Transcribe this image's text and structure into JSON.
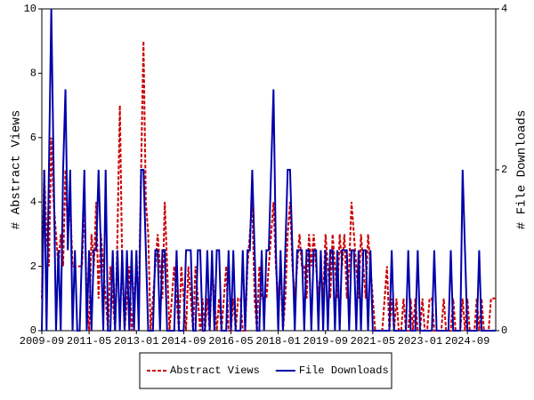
{
  "chart_data": {
    "type": "line",
    "y_label": "# Abstract Views",
    "y2_label": "# File Downloads",
    "x": [
      "2009-09",
      "2009-10",
      "2009-11",
      "2009-12",
      "2010-01",
      "2010-02",
      "2010-03",
      "2010-04",
      "2010-05",
      "2010-06",
      "2010-07",
      "2010-08",
      "2010-09",
      "2010-10",
      "2010-11",
      "2010-12",
      "2011-01",
      "2011-02",
      "2011-03",
      "2011-04",
      "2011-05",
      "2011-06",
      "2011-07",
      "2011-08",
      "2011-09",
      "2011-10",
      "2011-11",
      "2011-12",
      "2012-01",
      "2012-02",
      "2012-03",
      "2012-04",
      "2012-05",
      "2012-06",
      "2012-07",
      "2012-08",
      "2012-09",
      "2012-10",
      "2012-11",
      "2012-12",
      "2013-01",
      "2013-02",
      "2013-03",
      "2013-04",
      "2013-05",
      "2013-06",
      "2013-07",
      "2013-08",
      "2013-09",
      "2013-10",
      "2013-11",
      "2013-12",
      "2014-01",
      "2014-02",
      "2014-03",
      "2014-04",
      "2014-05",
      "2014-06",
      "2014-07",
      "2014-08",
      "2014-09",
      "2014-10",
      "2014-11",
      "2014-12",
      "2015-01",
      "2015-02",
      "2015-03",
      "2015-04",
      "2015-05",
      "2015-06",
      "2015-07",
      "2015-08",
      "2015-09",
      "2015-10",
      "2015-11",
      "2015-12",
      "2016-01",
      "2016-02",
      "2016-03",
      "2016-04",
      "2016-05",
      "2016-06",
      "2016-07",
      "2016-08",
      "2016-09",
      "2016-10",
      "2016-11",
      "2016-12",
      "2017-01",
      "2017-02",
      "2017-03",
      "2017-04",
      "2017-05",
      "2017-06",
      "2017-07",
      "2017-08",
      "2017-09",
      "2017-10",
      "2017-11",
      "2017-12",
      "2018-01",
      "2018-02",
      "2018-03",
      "2018-04",
      "2018-05",
      "2018-06",
      "2018-07",
      "2018-08",
      "2018-09",
      "2018-10",
      "2018-11",
      "2018-12",
      "2019-01",
      "2019-02",
      "2019-03",
      "2019-04",
      "2019-05",
      "2019-06",
      "2019-07",
      "2019-08",
      "2019-09",
      "2019-10",
      "2019-11",
      "2019-12",
      "2020-01",
      "2020-02",
      "2020-03",
      "2020-04",
      "2020-05",
      "2020-06",
      "2020-07",
      "2020-08",
      "2020-09",
      "2020-10",
      "2020-11",
      "2020-12",
      "2021-01",
      "2021-02",
      "2021-03",
      "2021-04",
      "2021-05",
      "2021-06",
      "2021-07",
      "2021-08",
      "2021-09",
      "2021-10",
      "2021-11",
      "2021-12",
      "2022-01",
      "2022-02",
      "2022-03",
      "2022-04",
      "2022-05",
      "2022-06",
      "2022-07",
      "2022-08",
      "2022-09",
      "2022-10",
      "2022-11",
      "2022-12",
      "2023-01",
      "2023-02",
      "2023-03",
      "2023-04",
      "2023-05",
      "2023-06",
      "2023-07",
      "2023-08",
      "2023-09",
      "2023-10",
      "2023-11",
      "2023-12",
      "2024-01",
      "2024-02",
      "2024-03",
      "2024-04",
      "2024-05",
      "2024-06",
      "2024-07",
      "2024-08",
      "2024-09",
      "2024-10",
      "2024-11",
      "2024-12",
      "2025-01",
      "2025-02",
      "2025-03",
      "2025-04",
      "2025-05",
      "2025-06",
      "2025-07",
      "2025-08",
      "2025-09"
    ],
    "xticks": [
      "2009-09",
      "2011-05",
      "2013-01",
      "2014-09",
      "2016-05",
      "2018-01",
      "2019-09",
      "2021-05",
      "2023-01",
      "2024-09"
    ],
    "series": [
      {
        "name": "Abstract Views",
        "color": "#cc0000",
        "style": "dashed",
        "axis": "y",
        "values": [
          1,
          5,
          3,
          2,
          6,
          4,
          3,
          2,
          3,
          2,
          5,
          3,
          4,
          2,
          2,
          2,
          2,
          2,
          4,
          1,
          0,
          3,
          2,
          4,
          1,
          3,
          2,
          1,
          0,
          2,
          1,
          0,
          3,
          7,
          2,
          0,
          1,
          2,
          0,
          1,
          2,
          1,
          5,
          9,
          4,
          3,
          0,
          1,
          2,
          3,
          2,
          1,
          4,
          2,
          0,
          1,
          2,
          1,
          0,
          2,
          1,
          0,
          2,
          1,
          0,
          2,
          1,
          0,
          1,
          0,
          1,
          0,
          2,
          1,
          0,
          1,
          0,
          1,
          2,
          0,
          0,
          1,
          0,
          1,
          1,
          0,
          0,
          2,
          3,
          4,
          1,
          0,
          2,
          1,
          1,
          1,
          2,
          3,
          4,
          2,
          1,
          2,
          0,
          1,
          3,
          4,
          2,
          1,
          2,
          3,
          2,
          2,
          1,
          3,
          2,
          3,
          2,
          1,
          2,
          1,
          3,
          2,
          1,
          3,
          2,
          1,
          3,
          2,
          3,
          1,
          2,
          4,
          3,
          2,
          1,
          3,
          2,
          1,
          3,
          2,
          1,
          0,
          0,
          0,
          0,
          1,
          2,
          0,
          1,
          0,
          1,
          0,
          0,
          1,
          0,
          0,
          1,
          0,
          1,
          0,
          0,
          1,
          0,
          0,
          1,
          1,
          0,
          0,
          0,
          0,
          1,
          0,
          0,
          0,
          1,
          0,
          0,
          0,
          1,
          0,
          1,
          0,
          0,
          0,
          1,
          0,
          1,
          0,
          0,
          0,
          1,
          1,
          1
        ]
      },
      {
        "name": "File Downloads",
        "color": "#0000aa",
        "style": "solid",
        "axis": "y2",
        "values": [
          0,
          2,
          0,
          2,
          4,
          2,
          0,
          1,
          0,
          2,
          3,
          1,
          2,
          0,
          1,
          0,
          0,
          1,
          2,
          0,
          1,
          0,
          1,
          1,
          2,
          1,
          0,
          2,
          0,
          0,
          1,
          0,
          1,
          0,
          1,
          0,
          1,
          0,
          1,
          0,
          1,
          0,
          2,
          2,
          1,
          0,
          0,
          0,
          1,
          1,
          0,
          1,
          1,
          0,
          0,
          0,
          0,
          1,
          0,
          0,
          0,
          1,
          1,
          1,
          0,
          0,
          1,
          1,
          0,
          0,
          1,
          0,
          1,
          0,
          1,
          1,
          0,
          0,
          0,
          1,
          0,
          1,
          0,
          0,
          0,
          1,
          0,
          1,
          1,
          2,
          1,
          0,
          0,
          1,
          0,
          1,
          1,
          2,
          3,
          1,
          0,
          1,
          0,
          1,
          2,
          2,
          1,
          0,
          1,
          1,
          1,
          0,
          1,
          1,
          0,
          1,
          1,
          0,
          1,
          0,
          1,
          0,
          1,
          1,
          0,
          1,
          0,
          1,
          1,
          1,
          0,
          1,
          1,
          0,
          1,
          0,
          1,
          1,
          0,
          1,
          0,
          0,
          0,
          0,
          0,
          0,
          0,
          0,
          1,
          0,
          0,
          0,
          0,
          0,
          0,
          1,
          0,
          0,
          0,
          1,
          0,
          0,
          0,
          0,
          0,
          0,
          1,
          0,
          0,
          0,
          0,
          0,
          0,
          1,
          0,
          0,
          0,
          0,
          2,
          1,
          0,
          0,
          0,
          0,
          0,
          1,
          0,
          0,
          0,
          0,
          0,
          0,
          0
        ]
      }
    ],
    "ylim": [
      0,
      10
    ],
    "yticks": [
      0,
      2,
      4,
      6,
      8,
      10
    ],
    "y2lim": [
      0,
      4
    ],
    "y2ticks": [
      0,
      2,
      4
    ],
    "legend": "bottom"
  }
}
